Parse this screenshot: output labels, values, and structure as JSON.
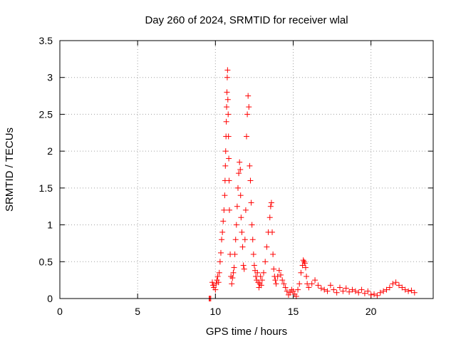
{
  "chart_data": {
    "type": "scatter",
    "title": "Day 260 of 2024, SRMTID for receiver wlal",
    "xlabel": "GPS time / hours",
    "ylabel": "SRMTID / TECUs",
    "xlim": [
      0,
      24
    ],
    "ylim": [
      0,
      3.5
    ],
    "xticks": [
      0,
      5,
      10,
      15,
      20
    ],
    "yticks": [
      0,
      0.5,
      1,
      1.5,
      2,
      2.5,
      3,
      3.5
    ],
    "xtick_labels": [
      "0",
      "5",
      "10",
      "15",
      "20"
    ],
    "ytick_labels": [
      "0",
      "0.5",
      "1",
      "1.5",
      "2",
      "2.5",
      "3",
      "3.5"
    ],
    "grid": true,
    "marker": "+",
    "series": [
      {
        "color": "#ff0000",
        "x": [
          9.6,
          9.65,
          9.7,
          9.8,
          9.85,
          9.9,
          10.0,
          10.05,
          10.1,
          10.15,
          10.2,
          10.25,
          10.3,
          10.35,
          10.4,
          10.45,
          10.5,
          10.55,
          10.6,
          10.62,
          10.64,
          10.66,
          10.68,
          10.7,
          10.72,
          10.74,
          10.76,
          10.78,
          10.8,
          10.82,
          10.84,
          10.86,
          10.88,
          10.9,
          10.95,
          11.0,
          11.05,
          11.1,
          11.15,
          11.2,
          11.25,
          11.3,
          11.35,
          11.4,
          11.45,
          11.5,
          11.55,
          11.6,
          11.62,
          11.65,
          11.7,
          11.75,
          11.8,
          11.85,
          11.9,
          11.95,
          12.0,
          12.05,
          12.1,
          12.15,
          12.2,
          12.25,
          12.3,
          12.35,
          12.4,
          12.45,
          12.5,
          12.55,
          12.6,
          12.65,
          12.7,
          12.75,
          12.8,
          12.85,
          12.9,
          12.95,
          13.0,
          13.1,
          13.2,
          13.3,
          13.4,
          13.5,
          13.55,
          13.6,
          13.65,
          13.7,
          13.75,
          13.8,
          13.85,
          13.9,
          14.0,
          14.1,
          14.2,
          14.3,
          14.4,
          14.5,
          14.6,
          14.7,
          14.8,
          14.9,
          15.0,
          15.1,
          15.2,
          15.3,
          15.4,
          15.5,
          15.6,
          15.65,
          15.7,
          15.75,
          15.8,
          15.85,
          15.9,
          16.0,
          16.2,
          16.4,
          16.6,
          16.8,
          17.0,
          17.2,
          17.4,
          17.6,
          17.8,
          18.0,
          18.2,
          18.4,
          18.6,
          18.8,
          19.0,
          19.2,
          19.4,
          19.6,
          19.8,
          20.0,
          20.2,
          20.4,
          20.6,
          20.8,
          21.0,
          21.2,
          21.4,
          21.6,
          21.8,
          22.0,
          22.2,
          22.4,
          22.6,
          22.8
        ],
        "y": [
          0.0,
          0.0,
          0.0,
          0.22,
          0.18,
          0.15,
          0.12,
          0.2,
          0.25,
          0.3,
          0.22,
          0.35,
          0.5,
          0.62,
          0.8,
          0.9,
          1.05,
          1.2,
          1.4,
          1.6,
          1.8,
          2.0,
          2.2,
          2.4,
          2.6,
          2.8,
          3.0,
          3.1,
          2.7,
          2.5,
          2.2,
          1.9,
          1.6,
          1.2,
          0.6,
          0.3,
          0.2,
          0.28,
          0.35,
          0.42,
          0.6,
          0.8,
          1.0,
          1.25,
          1.5,
          1.7,
          1.85,
          1.75,
          1.4,
          1.1,
          0.9,
          0.7,
          0.45,
          0.4,
          0.8,
          1.2,
          2.2,
          2.5,
          2.75,
          2.6,
          1.8,
          1.6,
          1.3,
          1.0,
          0.8,
          0.6,
          0.45,
          0.38,
          0.3,
          0.25,
          0.35,
          0.22,
          0.15,
          0.2,
          0.3,
          0.18,
          0.25,
          0.35,
          0.5,
          0.7,
          0.9,
          1.1,
          1.25,
          1.3,
          0.9,
          0.6,
          0.4,
          0.3,
          0.25,
          0.2,
          0.3,
          0.38,
          0.32,
          0.25,
          0.2,
          0.15,
          0.1,
          0.05,
          0.08,
          0.12,
          0.1,
          0.06,
          0.03,
          0.12,
          0.2,
          0.35,
          0.45,
          0.52,
          0.5,
          0.48,
          0.42,
          0.3,
          0.2,
          0.15,
          0.2,
          0.25,
          0.18,
          0.14,
          0.12,
          0.1,
          0.18,
          0.12,
          0.08,
          0.15,
          0.1,
          0.14,
          0.09,
          0.12,
          0.1,
          0.08,
          0.12,
          0.07,
          0.1,
          0.05,
          0.06,
          0.04,
          0.08,
          0.1,
          0.12,
          0.15,
          0.2,
          0.22,
          0.18,
          0.15,
          0.12,
          0.1,
          0.11,
          0.08
        ]
      }
    ]
  }
}
